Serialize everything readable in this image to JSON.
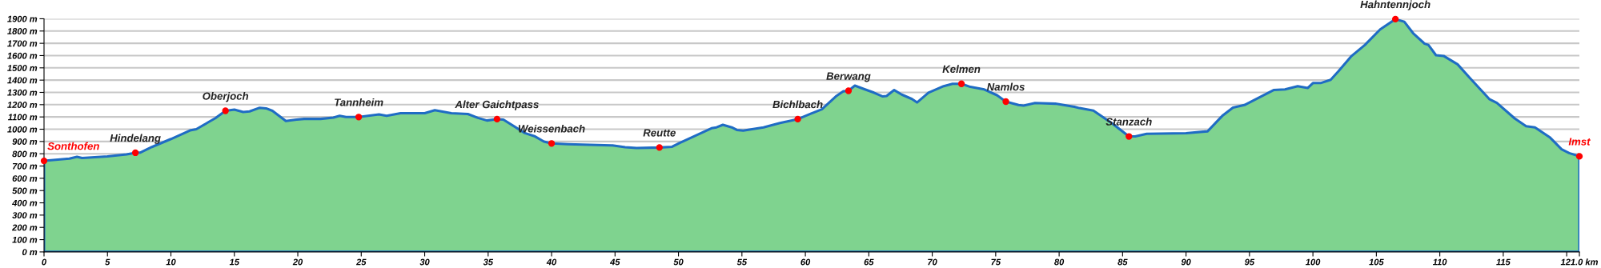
{
  "chart_data": {
    "type": "area",
    "x": [
      0,
      2,
      2.6,
      3,
      5,
      6.5,
      7.2,
      7.6,
      8.5,
      10,
      11.5,
      12,
      13,
      13.5,
      14.3,
      15,
      15.7,
      16.2,
      17,
      17.5,
      18,
      19.06,
      19.9,
      20.5,
      21.8,
      22.8,
      23.3,
      23.8,
      24.8,
      26.4,
      27.0,
      28.1,
      30,
      30.8,
      32.1,
      33.4,
      34.2,
      34.9,
      35.7,
      36.2,
      37.9,
      38.7,
      39.4,
      40,
      41.3,
      44.8,
      45.8,
      46.7,
      48.5,
      49.5,
      50.1,
      52.6,
      53.0,
      53.5,
      54.2,
      54.6,
      55.1,
      56.7,
      58.0,
      59.4,
      60.5,
      61.3,
      62.4,
      63.0,
      63.4,
      63.9,
      64.7,
      65.4,
      66.1,
      66.4,
      67.0,
      67.6,
      68.4,
      68.8,
      69.7,
      70.9,
      71.6,
      72.3,
      73.0,
      74.1,
      75.1,
      75.8,
      76.8,
      77.2,
      78.1,
      79.7,
      81.2,
      81.6,
      82.7,
      84.2,
      85.5,
      86.0,
      86.9,
      90.0,
      91.7,
      92.9,
      93.7,
      94.6,
      96.1,
      96.9,
      97.8,
      98.8,
      99.6,
      100.0,
      100.6,
      101.4,
      102.0,
      103.0,
      104.1,
      105.3,
      106.5,
      107.2,
      107.9,
      108.8,
      109.1,
      109.7,
      110.3,
      111.4,
      112.4,
      113.9,
      114.5,
      115.9,
      116.8,
      117.5,
      118.7,
      119.6,
      120.2,
      121.0
    ],
    "series": [
      {
        "color": "#1f6cc4",
        "values": [
          742,
          760,
          775,
          765,
          778,
          795,
          808,
          810,
          855,
          920,
          990,
          1000,
          1060,
          1090,
          1150,
          1160,
          1140,
          1145,
          1175,
          1170,
          1150,
          1067,
          1078,
          1084,
          1084,
          1095,
          1109,
          1099,
          1099,
          1120,
          1109,
          1130,
          1130,
          1155,
          1130,
          1124,
          1092,
          1071,
          1082,
          1078,
          968,
          941,
          899,
          884,
          878,
          868,
          853,
          847,
          851,
          857,
          889,
          1008,
          1015,
          1036,
          1015,
          994,
          989,
          1015,
          1050,
          1082,
          1130,
          1162,
          1267,
          1309,
          1313,
          1355,
          1324,
          1298,
          1267,
          1271,
          1319,
          1282,
          1246,
          1218,
          1298,
          1351,
          1370,
          1370,
          1345,
          1324,
          1277,
          1225,
          1197,
          1193,
          1214,
          1208,
          1183,
          1172,
          1151,
          1046,
          941,
          941,
          962,
          968,
          983,
          1113,
          1176,
          1197,
          1277,
          1319,
          1324,
          1351,
          1336,
          1376,
          1376,
          1403,
          1471,
          1592,
          1687,
          1813,
          1897,
          1876,
          1782,
          1697,
          1687,
          1603,
          1597,
          1529,
          1414,
          1246,
          1214,
          1088,
          1025,
          1015,
          931,
          836,
          805,
          779
        ]
      }
    ],
    "xlim": [
      0,
      121
    ],
    "ylim": [
      0,
      1900
    ],
    "xticks": [
      0,
      5,
      10,
      15,
      20,
      25,
      30,
      35,
      40,
      45,
      50,
      55,
      60,
      65,
      70,
      75,
      80,
      85,
      90,
      95,
      100,
      105,
      110,
      115,
      {
        "value": 120,
        "label": null
      },
      {
        "value": 121,
        "label": "121.0 km"
      }
    ],
    "yticks": [
      {
        "value": 0,
        "label": "0 m"
      },
      {
        "value": 100,
        "label": "100 m"
      },
      {
        "value": 200,
        "label": "200 m"
      },
      {
        "value": 300,
        "label": "300 m"
      },
      {
        "value": 400,
        "label": "400 m"
      },
      {
        "value": 500,
        "label": "500 m"
      },
      {
        "value": 600,
        "label": "600 m"
      },
      {
        "value": 700,
        "label": "700 m"
      },
      {
        "value": 800,
        "label": "800 m"
      },
      {
        "value": 900,
        "label": "900 m"
      },
      {
        "value": 1000,
        "label": "1000 m"
      },
      {
        "value": 1100,
        "label": "1100 m"
      },
      {
        "value": 1200,
        "label": "1200 m"
      },
      {
        "value": 1300,
        "label": "1300 m"
      },
      {
        "value": 1400,
        "label": "1400 m"
      },
      {
        "value": 1500,
        "label": "1500 m"
      },
      {
        "value": 1600,
        "label": "1600 m"
      },
      {
        "value": 1700,
        "label": "1700 m"
      },
      {
        "value": 1800,
        "label": "1800 m"
      },
      {
        "value": 1900,
        "label": "1900 m"
      }
    ],
    "grid": "y",
    "annotations": [
      {
        "text": "Sonthofen",
        "x": 0,
        "y": 742
      },
      {
        "text": "Hindelang",
        "x": 7.2,
        "y": 808
      },
      {
        "text": "Oberjoch",
        "x": 14.3,
        "y": 1150
      },
      {
        "text": "Tannheim",
        "x": 24.8,
        "y": 1099
      },
      {
        "text": "Alter Gaichtpass",
        "x": 35.7,
        "y": 1082
      },
      {
        "text": "Weissenbach",
        "x": 40,
        "y": 884
      },
      {
        "text": "Reutte",
        "x": 48.5,
        "y": 851
      },
      {
        "text": "Bichlbach",
        "x": 59.4,
        "y": 1082
      },
      {
        "text": "Berwang",
        "x": 63.4,
        "y": 1313
      },
      {
        "text": "Kelmen",
        "x": 72.3,
        "y": 1370
      },
      {
        "text": "Namlos",
        "x": 75.8,
        "y": 1225
      },
      {
        "text": "Stanzach",
        "x": 85.5,
        "y": 941
      },
      {
        "text": "Hahntennjoch",
        "x": 106.5,
        "y": 1897
      },
      {
        "text": "Imst",
        "x": 121.0,
        "y": 779
      }
    ]
  }
}
